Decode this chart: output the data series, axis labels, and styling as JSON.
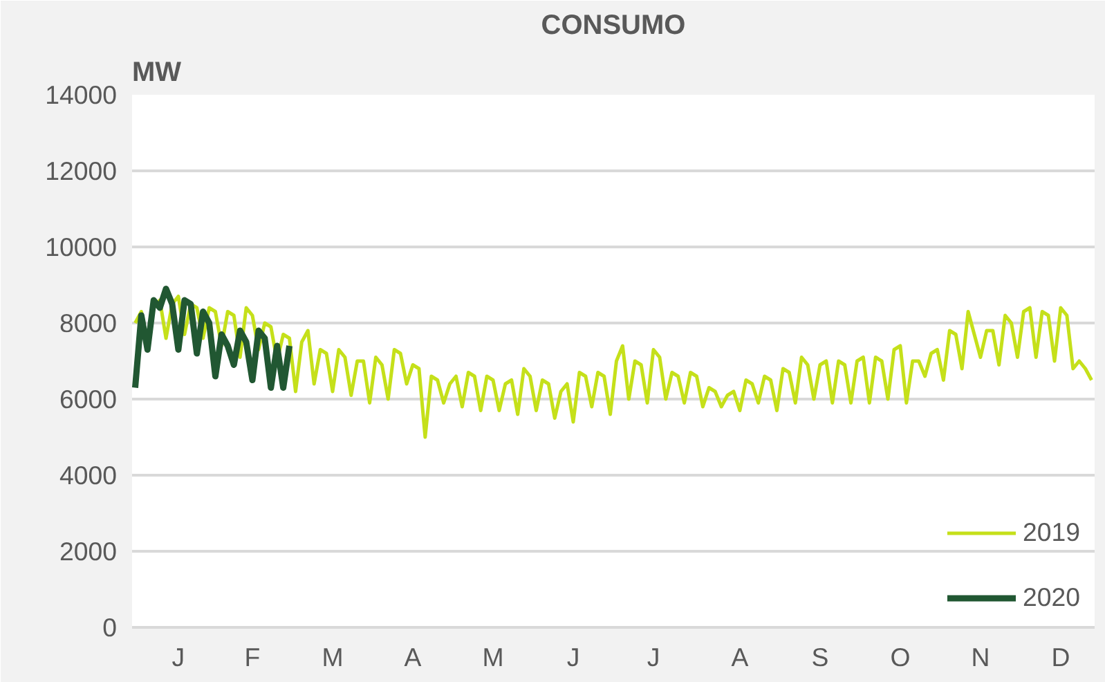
{
  "chart_data": {
    "type": "line",
    "title": "CONSUMO",
    "ylabel": "MW",
    "categories": [
      null,
      null,
      null,
      null,
      null,
      null,
      null,
      "J",
      null,
      null,
      null,
      null,
      null,
      null,
      null,
      null,
      null,
      null,
      null,
      "F",
      null,
      null,
      null,
      null,
      null,
      null,
      null,
      null,
      null,
      null,
      null,
      null,
      "M",
      null,
      null,
      null,
      null,
      null,
      null,
      null,
      null,
      null,
      null,
      null,
      null,
      "A",
      null,
      null,
      null,
      null,
      null,
      null,
      null,
      null,
      null,
      null,
      null,
      null,
      "M",
      null,
      null,
      null,
      null,
      null,
      null,
      null,
      null,
      null,
      null,
      null,
      null,
      "J",
      null,
      null,
      null,
      null,
      null,
      null,
      null,
      null,
      null,
      null,
      null,
      null,
      "J",
      null,
      null,
      null,
      null,
      null,
      null,
      null,
      null,
      null,
      null,
      null,
      null,
      null,
      "A",
      null,
      null,
      null,
      null,
      null,
      null,
      null,
      null,
      null,
      null,
      null,
      null,
      "S",
      null,
      null,
      null,
      null,
      null,
      null,
      null,
      null,
      null,
      null,
      null,
      null,
      "O",
      null,
      null,
      null,
      null,
      null,
      null,
      null,
      null,
      null,
      null,
      null,
      null,
      "N",
      null,
      null,
      null,
      null,
      null,
      null,
      null,
      null,
      null,
      null,
      null,
      null,
      "D",
      null,
      null,
      null,
      null,
      null
    ],
    "ylim": [
      0,
      14000
    ],
    "yticks": [
      0,
      2000,
      4000,
      6000,
      8000,
      10000,
      12000,
      14000
    ],
    "grid": "y",
    "legend": "bottom right",
    "line_style": "solid",
    "series": [
      {
        "name": "2019",
        "color": "#c5e01a",
        "values": [
          8000,
          8300,
          7500,
          8400,
          8600,
          7600,
          8500,
          8700,
          7700,
          8500,
          8400,
          7600,
          8400,
          8300,
          7400,
          8300,
          8200,
          7100,
          8400,
          8200,
          7300,
          8000,
          7900,
          7000,
          7700,
          7600,
          6200,
          7500,
          7800,
          6400,
          7300,
          7200,
          6200,
          7300,
          7100,
          6100,
          7000,
          7000,
          5900,
          7100,
          6900,
          6000,
          7300,
          7200,
          6400,
          6900,
          6800,
          5000,
          6600,
          6500,
          5900,
          6400,
          6600,
          5800,
          6700,
          6600,
          5700,
          6600,
          6500,
          5700,
          6400,
          6500,
          5600,
          6800,
          6600,
          5700,
          6500,
          6400,
          5500,
          6200,
          6400,
          5400,
          6700,
          6600,
          5800,
          6700,
          6600,
          5600,
          7000,
          7400,
          6000,
          7000,
          6900,
          5900,
          7300,
          7100,
          6000,
          6700,
          6600,
          5900,
          6700,
          6600,
          5800,
          6300,
          6200,
          5800,
          6100,
          6200,
          5700,
          6500,
          6400,
          5900,
          6600,
          6500,
          5700,
          6800,
          6700,
          5900,
          7100,
          6900,
          6000,
          6900,
          7000,
          5900,
          7000,
          6900,
          5900,
          7000,
          7100,
          5900,
          7100,
          7000,
          6000,
          7300,
          7400,
          5900,
          7000,
          7000,
          6600,
          7200,
          7300,
          6500,
          7800,
          7700,
          6800,
          8300,
          7700,
          7100,
          7800,
          7800,
          6900,
          8200,
          8000,
          7100,
          8300,
          8400,
          7100,
          8300,
          8200,
          7000,
          8400,
          8200,
          6800,
          7000,
          6800,
          6500
        ]
      },
      {
        "name": "2020",
        "color": "#215732",
        "values": [
          6300,
          8200,
          7300,
          8600,
          8400,
          8900,
          8500,
          7300,
          8600,
          8500,
          7200,
          8300,
          8000,
          6600,
          7700,
          7400,
          6900,
          7800,
          7500,
          6500,
          7800,
          7600,
          6300,
          7400,
          6300,
          7400,
          null,
          null,
          null,
          null,
          null,
          null,
          null,
          null,
          null,
          null,
          null,
          null,
          null,
          null,
          null,
          null,
          null,
          null,
          null,
          null,
          null,
          null,
          null,
          null,
          null,
          null,
          null,
          null,
          null,
          null,
          null,
          null,
          null,
          null,
          null,
          null,
          null,
          null,
          null,
          null,
          null,
          null,
          null,
          null,
          null,
          null,
          null,
          null,
          null,
          null,
          null,
          null,
          null,
          null,
          null,
          null,
          null,
          null,
          null,
          null,
          null,
          null,
          null,
          null,
          null,
          null,
          null,
          null,
          null,
          null,
          null,
          null,
          null,
          null,
          null,
          null,
          null,
          null,
          null,
          null,
          null,
          null,
          null,
          null,
          null,
          null,
          null,
          null,
          null,
          null,
          null,
          null,
          null,
          null,
          null,
          null,
          null,
          null,
          null,
          null,
          null,
          null,
          null,
          null,
          null,
          null,
          null,
          null,
          null,
          null,
          null,
          null,
          null,
          null,
          null,
          null,
          null,
          null,
          null,
          null,
          null,
          null,
          null,
          null,
          null,
          null,
          null,
          null,
          null,
          null
        ]
      }
    ]
  }
}
